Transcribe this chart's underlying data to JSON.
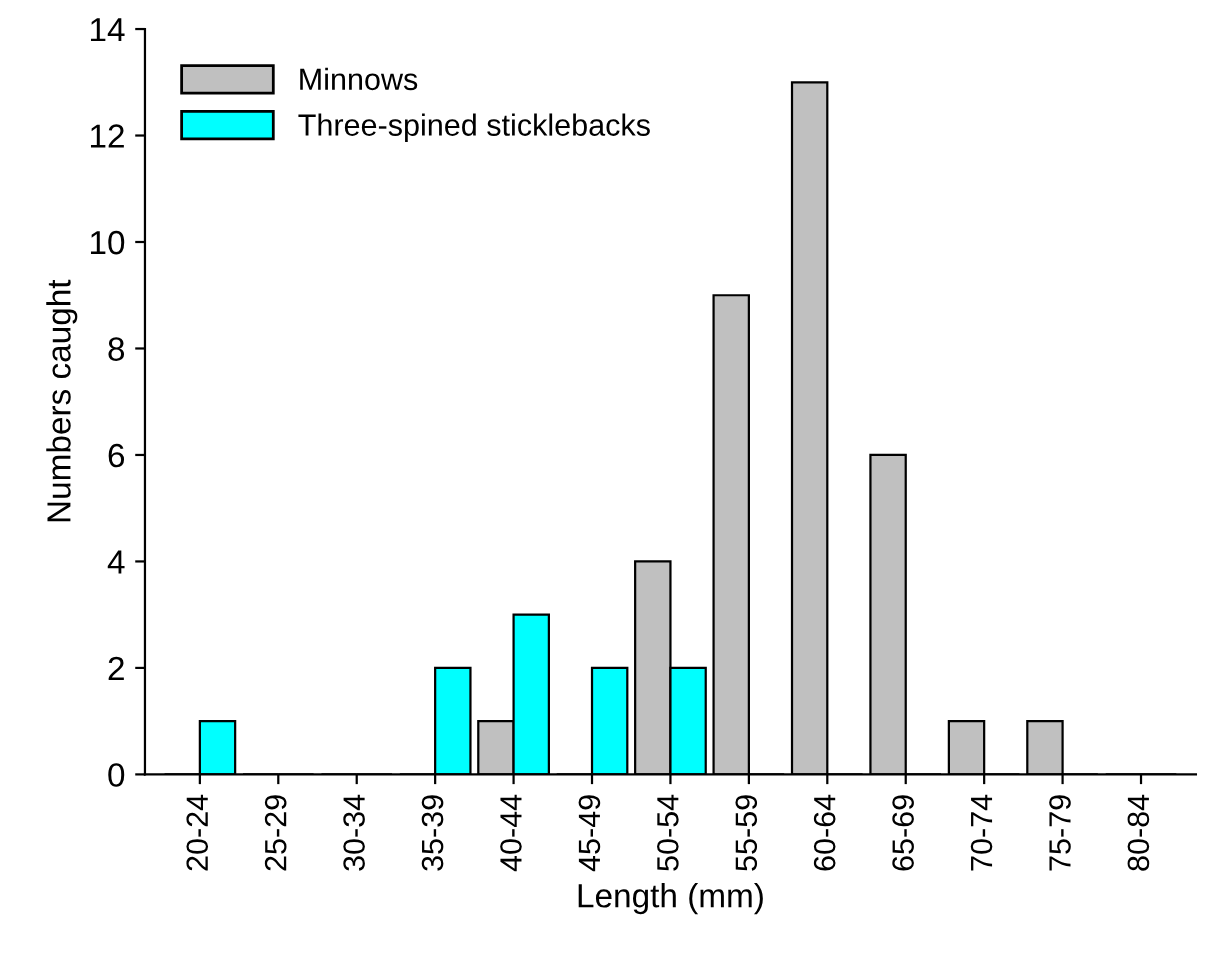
{
  "chart_data": {
    "type": "bar",
    "xlabel": "Length (mm)",
    "ylabel": "Numbers caught",
    "categories": [
      "20-24",
      "25-29",
      "30-34",
      "35-39",
      "40-44",
      "45-49",
      "50-54",
      "55-59",
      "60-64",
      "65-69",
      "70-74",
      "75-79",
      "80-84"
    ],
    "series": [
      {
        "name": "Minnows",
        "color": "#c0c0c0",
        "values": [
          0,
          0,
          0,
          0,
          1,
          0,
          4,
          9,
          13,
          6,
          1,
          1,
          0
        ]
      },
      {
        "name": "Three-spined sticklebacks",
        "color": "#00ffff",
        "values": [
          1,
          0,
          0,
          2,
          3,
          2,
          2,
          0,
          0,
          0,
          0,
          0,
          0
        ]
      }
    ],
    "ylim": [
      0,
      14
    ],
    "yticks": [
      0,
      2,
      4,
      6,
      8,
      10,
      12,
      14
    ],
    "grid": false,
    "legend": "top left"
  }
}
